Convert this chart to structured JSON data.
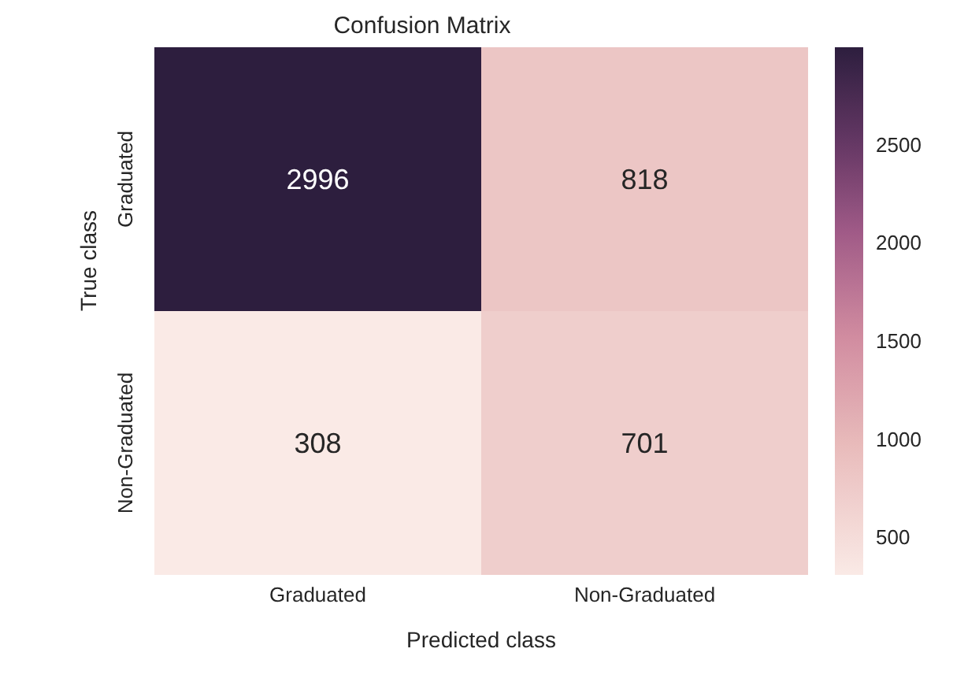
{
  "chart_data": {
    "type": "heatmap",
    "title": "Confusion Matrix",
    "xlabel": "Predicted class",
    "ylabel": "True class",
    "categories": [
      "Graduated",
      "Non-Graduated"
    ],
    "y_categories": [
      "Graduated",
      "Non-Graduated"
    ],
    "cells": [
      [
        2996,
        818
      ],
      [
        308,
        701
      ]
    ],
    "data_labels": true,
    "clim": [
      308,
      2996
    ],
    "cticks": [
      500,
      1000,
      1500,
      2000,
      2500
    ]
  }
}
